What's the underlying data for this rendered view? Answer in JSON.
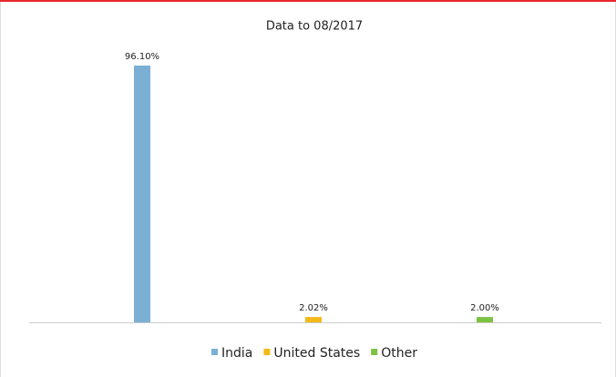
{
  "chart_data": {
    "type": "bar",
    "title": "Data to 08/2017",
    "categories": [
      null,
      null,
      null
    ],
    "series": [
      {
        "name": "India",
        "color": "#7bafd4",
        "values": [
          96.1,
          null,
          null
        ],
        "value_labels": [
          "96.10%",
          null,
          null
        ]
      },
      {
        "name": "United States",
        "color": "#f2b919",
        "values": [
          null,
          2.02,
          null
        ],
        "value_labels": [
          null,
          "2.02%",
          null
        ]
      },
      {
        "name": "Other",
        "color": "#7dc242",
        "values": [
          null,
          null,
          2.0
        ],
        "value_labels": [
          null,
          null,
          "2.00%"
        ]
      }
    ],
    "ylim": [
      0,
      100
    ],
    "grid": false,
    "legend": "bottom"
  }
}
